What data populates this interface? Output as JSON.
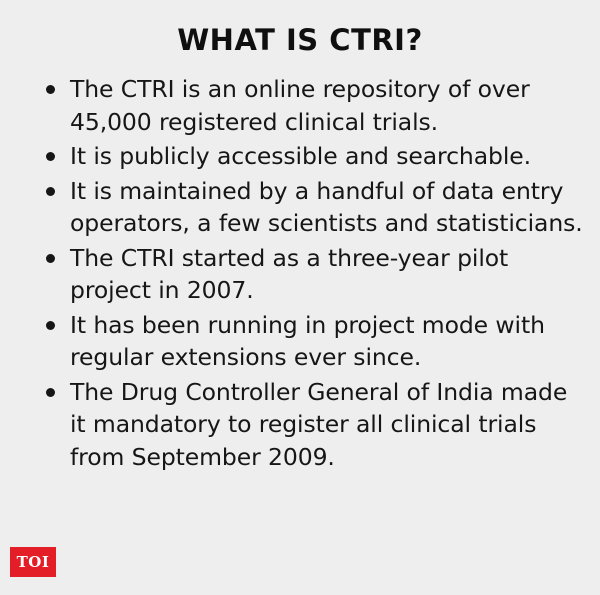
{
  "title": "WHAT IS CTRI?",
  "bullets": [
    "The CTRI is an online repository of over 45,000 registered clinical trials.",
    "It is publicly accessible and searchable.",
    "It is maintained by a handful of data entry operators, a few scientists and statisticians.",
    "The CTRI started as a three-year pilot project in 2007.",
    "It has been running in project mode with regular extensions ever since.",
    "The Drug Controller General of India made it mandatory to register all clinical trials from September 2009."
  ],
  "logo": "TOI",
  "colors": {
    "background": "#eeeeee",
    "text": "#161616",
    "logo_bg": "#e41e26",
    "logo_text": "#ffffff"
  }
}
